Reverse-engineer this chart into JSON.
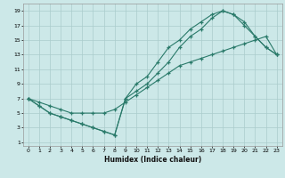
{
  "xlabel": "Humidex (Indice chaleur)",
  "bg_color": "#cce8e8",
  "grid_color": "#aacccc",
  "line_color": "#2a7a6a",
  "xlim": [
    -0.5,
    23.5
  ],
  "ylim": [
    0.5,
    20.0
  ],
  "xticks": [
    0,
    1,
    2,
    3,
    4,
    5,
    6,
    7,
    8,
    9,
    10,
    11,
    12,
    13,
    14,
    15,
    16,
    17,
    18,
    19,
    20,
    21,
    22,
    23
  ],
  "yticks": [
    1,
    3,
    5,
    7,
    9,
    11,
    13,
    15,
    17,
    19
  ],
  "line1_x": [
    0,
    1,
    2,
    3,
    4,
    5,
    6,
    7,
    8,
    9,
    10,
    11,
    12,
    13,
    14,
    15,
    16,
    17,
    18,
    19,
    20,
    21,
    22,
    23
  ],
  "line1_y": [
    7,
    6,
    5,
    4.5,
    4,
    3.5,
    3,
    2.5,
    2,
    7,
    8,
    9,
    10.5,
    12,
    14,
    15.5,
    16.5,
    18,
    19,
    18.5,
    17,
    15.5,
    14,
    13
  ],
  "line2_x": [
    0,
    1,
    2,
    3,
    4,
    5,
    6,
    7,
    8,
    9,
    10,
    11,
    12,
    13,
    14,
    15,
    16,
    17,
    18,
    19,
    20,
    21,
    22,
    23
  ],
  "line2_y": [
    7,
    6,
    5,
    4.5,
    4,
    3.5,
    3,
    2.5,
    2,
    7,
    9,
    10,
    12,
    14,
    15,
    16.5,
    17.5,
    18.5,
    19,
    18.5,
    17.5,
    15.5,
    14,
    13
  ],
  "line3_x": [
    0,
    1,
    2,
    3,
    4,
    5,
    6,
    7,
    8,
    9,
    10,
    11,
    12,
    13,
    14,
    15,
    16,
    17,
    18,
    19,
    20,
    21,
    22,
    23
  ],
  "line3_y": [
    7,
    6.5,
    6,
    5.5,
    5,
    5,
    5,
    5,
    5.5,
    6.5,
    7.5,
    8.5,
    9.5,
    10.5,
    11.5,
    12,
    12.5,
    13,
    13.5,
    14,
    14.5,
    15,
    15.5,
    13
  ]
}
